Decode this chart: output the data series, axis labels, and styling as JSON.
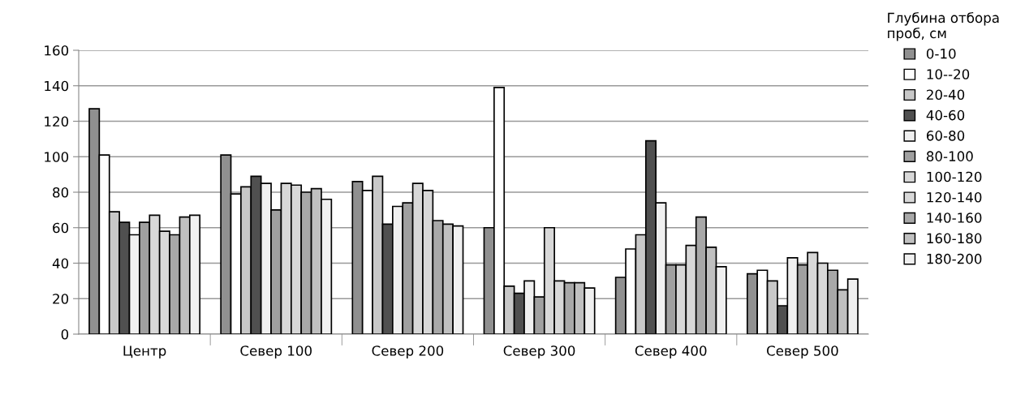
{
  "chart_data": {
    "type": "bar",
    "categories": [
      "Центр",
      "Север 100",
      "Север 200",
      "Север 300",
      "Север 400",
      "Север 500"
    ],
    "legend_title": "Глубина отбора\nпроб, см",
    "legend": "right",
    "grid": "y",
    "ylim": [
      0,
      160
    ],
    "yticks": [
      0,
      20,
      40,
      60,
      80,
      100,
      120,
      140,
      160
    ],
    "series": [
      {
        "name": "0-10",
        "color": "#909090",
        "values": [
          127,
          101,
          86,
          60,
          32,
          34
        ]
      },
      {
        "name": "10--20",
        "color": "#ffffff",
        "values": [
          101,
          79,
          81,
          139,
          48,
          36
        ]
      },
      {
        "name": "20-40",
        "color": "#c8c8c8",
        "values": [
          69,
          83,
          89,
          27,
          56,
          30
        ]
      },
      {
        "name": "40-60",
        "color": "#505050",
        "values": [
          63,
          89,
          62,
          23,
          109,
          16
        ]
      },
      {
        "name": "60-80",
        "color": "#f0f0f0",
        "values": [
          56,
          85,
          72,
          30,
          74,
          43
        ]
      },
      {
        "name": "80-100",
        "color": "#a0a0a0",
        "values": [
          63,
          70,
          74,
          21,
          39,
          39
        ]
      },
      {
        "name": "100-120",
        "color": "#d8d8d8",
        "values": [
          67,
          85,
          85,
          60,
          39,
          46
        ]
      },
      {
        "name": "120-140",
        "color": "#d8d8d8",
        "values": [
          58,
          84,
          81,
          30,
          50,
          40
        ]
      },
      {
        "name": "140-160",
        "color": "#a8a8a8",
        "values": [
          56,
          80,
          64,
          29,
          66,
          36
        ]
      },
      {
        "name": "160-180",
        "color": "#c0c0c0",
        "values": [
          66,
          82,
          62,
          29,
          49,
          25
        ]
      },
      {
        "name": "180-200",
        "color": "#f0f0f0",
        "values": [
          67,
          76,
          61,
          26,
          38,
          31
        ]
      }
    ]
  }
}
